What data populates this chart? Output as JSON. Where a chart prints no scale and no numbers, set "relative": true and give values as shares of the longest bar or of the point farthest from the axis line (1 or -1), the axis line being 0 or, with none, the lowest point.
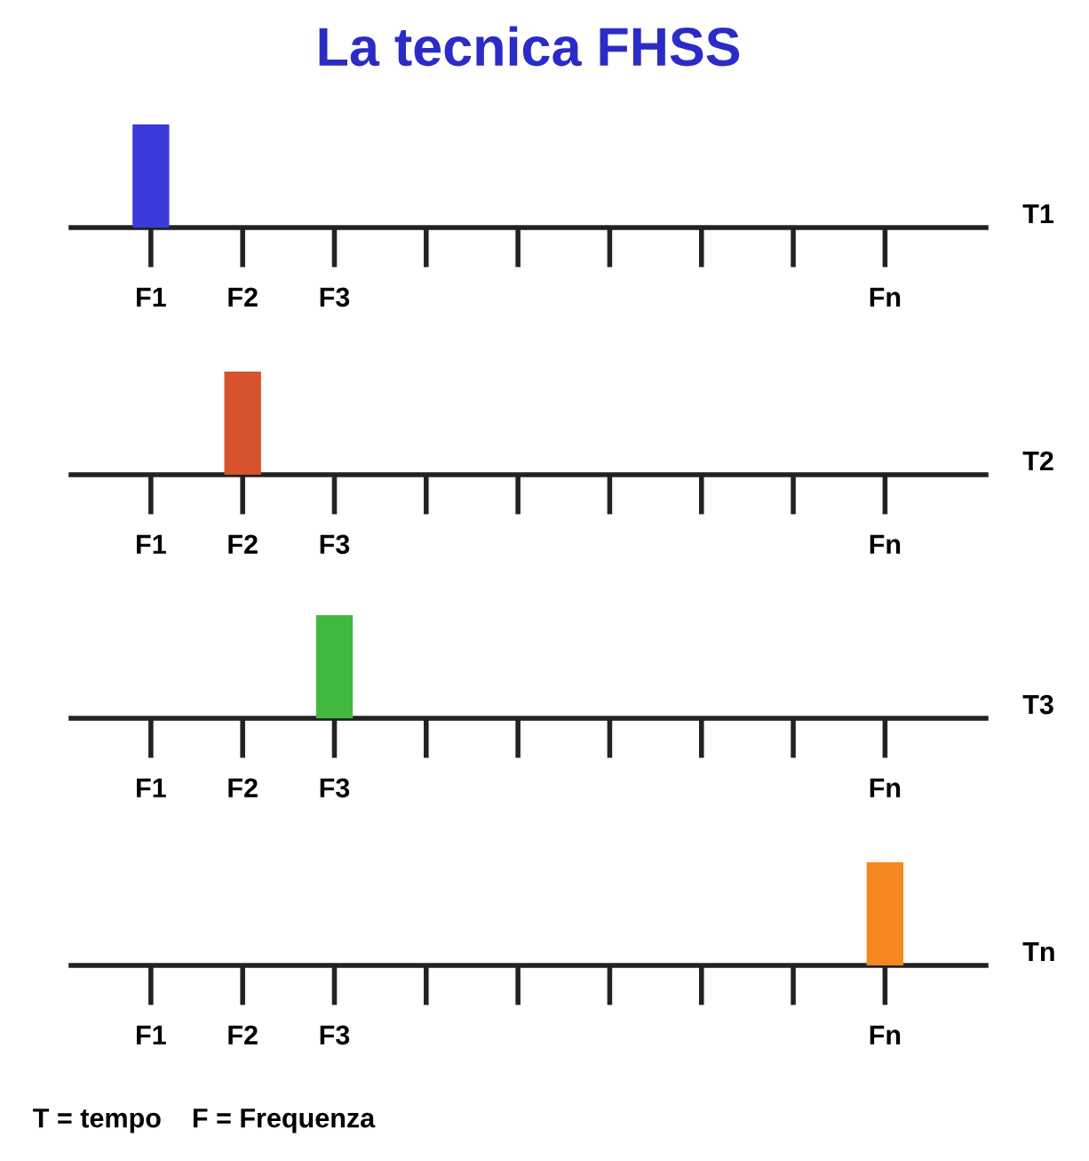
{
  "chart_data": [
    {
      "type": "bar",
      "title": "La tecnica FHSS",
      "ylabel": "T1",
      "relative": true,
      "categories": [
        "F1",
        "F2",
        "F3",
        null,
        null,
        null,
        null,
        null,
        "Fn"
      ],
      "series": [
        {
          "color": "#3b3bdc",
          "values": [
            1,
            null,
            null,
            null,
            null,
            null,
            null,
            null,
            null
          ]
        }
      ]
    },
    {
      "type": "bar",
      "ylabel": "T2",
      "relative": true,
      "categories": [
        "F1",
        "F2",
        "F3",
        null,
        null,
        null,
        null,
        null,
        "Fn"
      ],
      "series": [
        {
          "color": "#d6532e",
          "values": [
            null,
            1,
            null,
            null,
            null,
            null,
            null,
            null,
            null
          ]
        }
      ]
    },
    {
      "type": "bar",
      "ylabel": "T3",
      "relative": true,
      "categories": [
        "F1",
        "F2",
        "F3",
        null,
        null,
        null,
        null,
        null,
        "Fn"
      ],
      "series": [
        {
          "color": "#3fba3f",
          "values": [
            null,
            null,
            1,
            null,
            null,
            null,
            null,
            null,
            null
          ]
        }
      ]
    },
    {
      "type": "bar",
      "ylabel": "Tn",
      "relative": true,
      "categories": [
        "F1",
        "F2",
        "F3",
        null,
        null,
        null,
        null,
        null,
        "Fn"
      ],
      "series": [
        {
          "color": "#f5871f",
          "values": [
            null,
            null,
            null,
            null,
            null,
            null,
            null,
            null,
            1
          ]
        }
      ],
      "annotations": [
        "T = tempo    F = Frequenza"
      ]
    }
  ]
}
